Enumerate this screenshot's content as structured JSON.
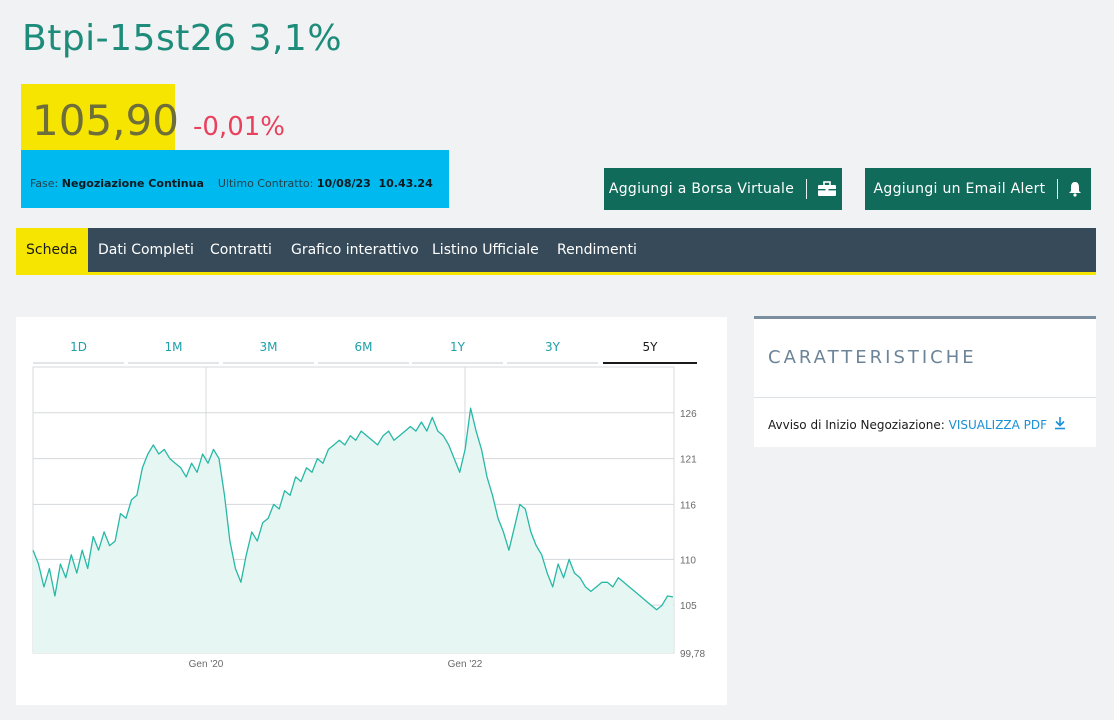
{
  "header": {
    "title": "Btpi-15st26 3,1%",
    "price": "105,90",
    "change": "-0,01%"
  },
  "phase": {
    "phase_label": "Fase:",
    "phase_value": "Negoziazione Continua",
    "contract_label": "Ultimo Contratto:",
    "contract_value": "10/08/23  10.43.24"
  },
  "actions": {
    "virtual_exchange_label": "Aggiungi a Borsa Virtuale",
    "virtual_exchange_icon": "briefcase-icon",
    "email_alert_label": "Aggiungi un Email Alert",
    "email_alert_icon": "bell-icon"
  },
  "nav": {
    "items": [
      "Scheda",
      "Dati Completi",
      "Contratti",
      "Grafico interattivo",
      "Listino Ufficiale",
      "Rendimenti"
    ],
    "active_index": 0
  },
  "chart_tabs": {
    "items": [
      "1D",
      "1M",
      "3M",
      "6M",
      "1Y",
      "3Y",
      "5Y"
    ],
    "active_index": 6
  },
  "characteristics": {
    "title": "CARATTERISTICHE",
    "notice_label": "Avviso di Inizio Negoziazione:",
    "notice_link": "VISUALIZZA PDF",
    "notice_icon": "download-icon"
  },
  "colors": {
    "accent_green": "#1e8c7a",
    "button_green": "#106b5a",
    "highlight_yellow": "#f6e500",
    "info_blue": "#00b9ee",
    "negative_red": "#e8415e",
    "nav_dark": "#364a59",
    "series_line": "#28b8a6",
    "series_fill": "#e6f6f3"
  },
  "chart_data": {
    "type": "area",
    "title": "",
    "xlabel": "",
    "ylabel": "",
    "x_tick_labels": [
      "Gen '20",
      "Gen '22"
    ],
    "y_tick_labels": [
      "99,78",
      "105",
      "110",
      "116",
      "121",
      "126"
    ],
    "ylim": [
      99.78,
      131
    ],
    "grid": true,
    "series": [
      {
        "values": [
          111,
          109.5,
          107,
          109,
          106,
          109.5,
          108,
          110.5,
          108.5,
          111,
          109,
          112.5,
          111,
          113,
          111.5,
          112,
          115,
          114.5,
          116.5,
          117,
          120,
          121.5,
          122.5,
          121.5,
          122,
          121,
          120.5,
          120,
          119,
          120.5,
          119.5,
          121.5,
          120.5,
          122,
          121,
          117,
          112,
          109,
          107.5,
          110.5,
          113,
          112,
          114,
          114.5,
          116,
          115.5,
          117.5,
          117,
          119,
          118.5,
          120,
          119.5,
          121,
          120.5,
          122,
          122.5,
          123,
          122.5,
          123.5,
          123,
          124,
          123.5,
          123,
          122.5,
          123.5,
          124,
          123,
          123.5,
          124,
          124.5,
          124,
          125,
          124,
          125.5,
          124,
          123.5,
          122.5,
          121,
          119.5,
          122,
          126.5,
          124,
          122,
          119,
          117,
          114.5,
          113,
          111,
          113.5,
          116,
          115.5,
          113,
          111.5,
          110.5,
          108.5,
          107,
          109.5,
          108,
          110,
          108.5,
          108,
          107,
          106.5,
          107,
          107.5,
          107.5,
          107,
          108,
          107.5,
          107,
          106.5,
          106,
          105.5,
          105,
          104.5,
          105,
          106,
          105.9
        ]
      }
    ]
  }
}
